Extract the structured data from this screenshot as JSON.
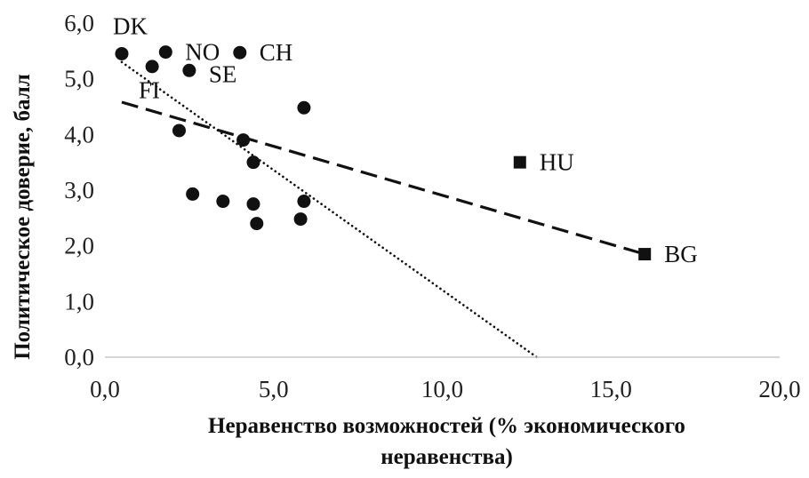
{
  "chart_data": {
    "type": "scatter",
    "title": "",
    "xlabel_lines": [
      "Неравенство возможностей (% экономического",
      "неравенства)"
    ],
    "ylabel": "Политическое доверие, балл",
    "xlim": [
      0,
      20
    ],
    "ylim": [
      0,
      6
    ],
    "x_ticks": [
      "0,0",
      "5,0",
      "10,0",
      "15,0",
      "20,0"
    ],
    "y_ticks": [
      "0,0",
      "1,0",
      "2,0",
      "3,0",
      "4,0",
      "5,0",
      "6,0"
    ],
    "grid": false,
    "series": [
      {
        "marker": "circle",
        "points": [
          {
            "x": 0.5,
            "y": 5.45,
            "label": "DK"
          },
          {
            "x": 1.4,
            "y": 5.22,
            "label": ""
          },
          {
            "x": 1.8,
            "y": 5.48,
            "label": "NO"
          },
          {
            "x": 2.5,
            "y": 5.15,
            "label": "SE"
          },
          {
            "x": 4.0,
            "y": 5.47,
            "label": "CH"
          },
          {
            "x": 5.9,
            "y": 4.48,
            "label": ""
          },
          {
            "x": 2.2,
            "y": 4.07,
            "label": ""
          },
          {
            "x": 4.1,
            "y": 3.9,
            "label": ""
          },
          {
            "x": 4.4,
            "y": 3.5,
            "label": ""
          },
          {
            "x": 2.6,
            "y": 2.93,
            "label": ""
          },
          {
            "x": 3.5,
            "y": 2.8,
            "label": ""
          },
          {
            "x": 4.4,
            "y": 2.75,
            "label": ""
          },
          {
            "x": 5.9,
            "y": 2.8,
            "label": ""
          },
          {
            "x": 5.8,
            "y": 2.48,
            "label": ""
          },
          {
            "x": 4.5,
            "y": 2.4,
            "label": ""
          }
        ]
      },
      {
        "marker": "square",
        "points": [
          {
            "x": 12.3,
            "y": 3.5,
            "label": "HU"
          },
          {
            "x": 16.0,
            "y": 1.85,
            "label": "BG"
          }
        ]
      }
    ],
    "extra_labels": [
      {
        "text": "FI",
        "x": 1.0,
        "y": 4.65
      }
    ],
    "trendlines": [
      {
        "style": "dotted",
        "x": [
          0.5,
          12.8
        ],
        "y": [
          5.3,
          0.0
        ]
      },
      {
        "style": "dashed",
        "x": [
          0.5,
          16.0
        ],
        "y": [
          4.58,
          1.85
        ]
      }
    ]
  }
}
